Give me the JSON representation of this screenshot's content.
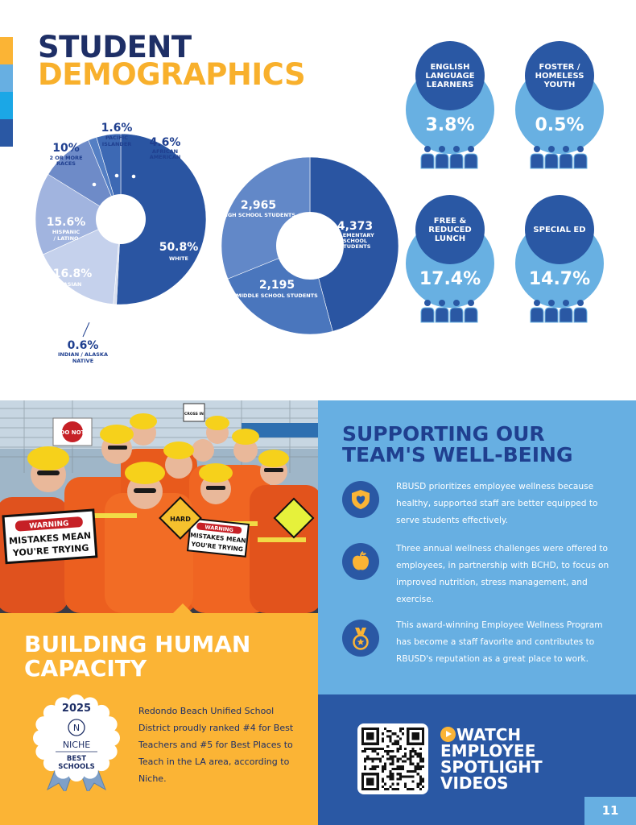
{
  "colors": {
    "navy": "#1e2f66",
    "blue": "#2a58a4",
    "sky": "#67afe2",
    "gold": "#fbb435"
  },
  "title": {
    "line1": "STUDENT",
    "line2": "DEMOGRAPHICS"
  },
  "chart_data": [
    {
      "type": "pie",
      "variant": "donut",
      "slices": [
        {
          "value": "50.8%",
          "label": "WHITE",
          "color": "#2a55a2"
        },
        {
          "value": "0.6%",
          "label": "INDIAN / ALASKA NATIVE",
          "color": "#d7deee"
        },
        {
          "value": "16.8%",
          "label": "ASIAN",
          "color": "#c5d1ec"
        },
        {
          "value": "15.6%",
          "label": "HISPANIC / LATINO",
          "color": "#a1b4df"
        },
        {
          "value": "10%",
          "label": "2 OR MORE RACES",
          "color": "#6e8bc8"
        },
        {
          "value": "1.6%",
          "label": "PACIFIC ISLANDER",
          "color": "#547fc4"
        },
        {
          "value": "4.6%",
          "label": "AFRICAN AMERICAN",
          "color": "#3d69b4"
        }
      ],
      "percentages": [
        50.8,
        0.6,
        16.8,
        15.6,
        10,
        1.6,
        4.6
      ]
    },
    {
      "type": "pie",
      "variant": "donut",
      "slices": [
        {
          "value": "4,373",
          "label": "ELEMENTARY SCHOOL STUDENTS",
          "color": "#2a55a2"
        },
        {
          "value": "2,195",
          "label": "MIDDLE SCHOOL STUDENTS",
          "color": "#4a76bd"
        },
        {
          "value": "2,965",
          "label": "HIGH SCHOOL STUDENTS",
          "color": "#6288c8"
        }
      ],
      "values": [
        4373,
        2195,
        2965
      ]
    }
  ],
  "stats": [
    {
      "label": "ENGLISH LANGUAGE LEARNERS",
      "value": "3.8%"
    },
    {
      "label": "FOSTER / HOMELESS YOUTH",
      "value": "0.5%"
    },
    {
      "label": "FREE & REDUCED LUNCH",
      "value": "17.4%"
    },
    {
      "label": "SPECIAL ED",
      "value": "14.7%"
    }
  ],
  "photo": {
    "sign1_top": "WARNING",
    "sign1_text": "MISTAKES MEAN YOU'RE TRYING",
    "sign2_top": "WARNING",
    "sign2_text": "MISTAKES MEAN YOU'RE TRYING",
    "sign3": "HARD",
    "sign4": "DO NOT",
    "sign5": "CROSS IN"
  },
  "building": {
    "title": "BUILDING HUMAN CAPACITY",
    "text": "Redondo Beach Unified School District proudly ranked #4 for Best Teachers and #5 for Best Places to Teach in the LA area, according to Niche.",
    "badge": {
      "year": "2025",
      "brand": "NICHE",
      "line1": "BEST",
      "line2": "SCHOOLS"
    }
  },
  "support": {
    "title": "SUPPORTING OUR TEAM'S WELL-BEING",
    "items": [
      {
        "icon": "heart-shield-icon",
        "text": "RBUSD prioritizes employee wellness because healthy, supported staff are better equipped to serve students effectively."
      },
      {
        "icon": "apple-icon",
        "text": "Three annual wellness challenges were offered to employees, in partnership with BCHD, to focus on improved nutrition, stress management, and exercise."
      },
      {
        "icon": "award-medal-icon",
        "text": "This award-winning Employee Wellness Program has become a staff favorite and contributes to RBUSD's reputation as a great place to work."
      }
    ]
  },
  "video": {
    "line1": "WATCH",
    "line2": "EMPLOYEE",
    "line3": "SPOTLIGHT",
    "line4": "VIDEOS"
  },
  "page_number": "11"
}
